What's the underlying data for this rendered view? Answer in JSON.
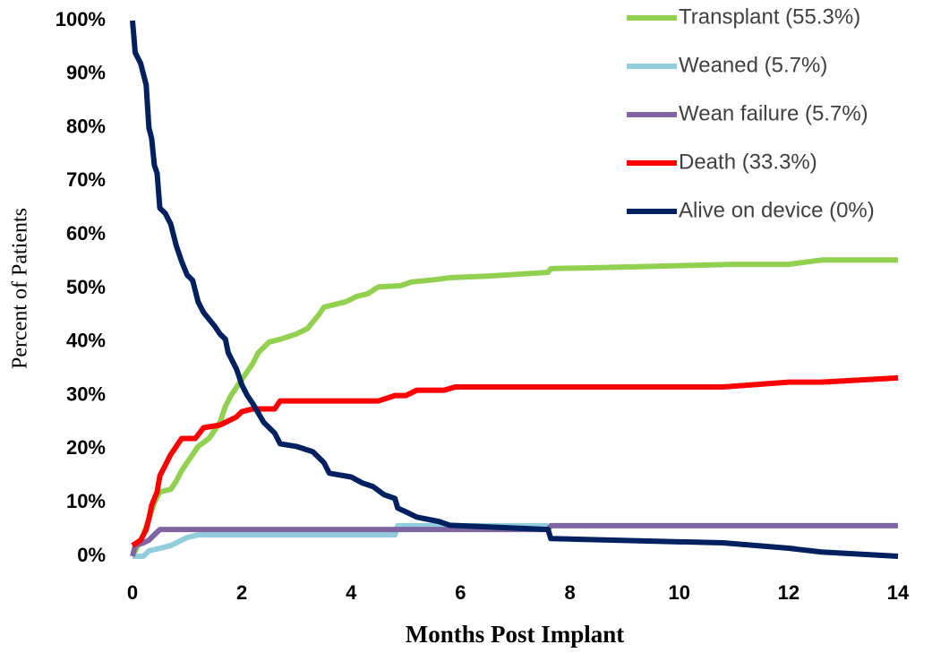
{
  "chart_data": {
    "type": "line",
    "x_label": "Months Post Implant",
    "y_label": "Percent of Patients",
    "xlim": [
      0,
      14
    ],
    "xticks": [
      0,
      2,
      4,
      6,
      8,
      10,
      12,
      14
    ],
    "ylim": [
      0,
      100
    ],
    "yticks": [
      {
        "value": 0,
        "label": "0%"
      },
      {
        "value": 10,
        "label": "10%"
      },
      {
        "value": 20,
        "label": "20%"
      },
      {
        "value": 30,
        "label": "30%"
      },
      {
        "value": 40,
        "label": "40%"
      },
      {
        "value": 50,
        "label": "50%"
      },
      {
        "value": 60,
        "label": "60%"
      },
      {
        "value": 70,
        "label": "70%"
      },
      {
        "value": 80,
        "label": "80%"
      },
      {
        "value": 90,
        "label": "90%"
      },
      {
        "value": 100,
        "label": "100%"
      }
    ],
    "grid": false,
    "legend": "top-right",
    "series": [
      {
        "name": "Transplant (55.3%)",
        "color": "#92d050",
        "x": [
          0,
          0.1,
          0.2,
          0.3,
          0.4,
          0.5,
          0.7,
          0.8,
          0.9,
          1.0,
          1.1,
          1.2,
          1.4,
          1.6,
          1.7,
          1.8,
          2.0,
          2.2,
          2.3,
          2.5,
          2.7,
          3.0,
          3.2,
          3.4,
          3.5,
          3.9,
          4.1,
          4.3,
          4.5,
          4.9,
          5.1,
          5.5,
          5.8,
          6.5,
          7.6,
          7.65,
          9,
          11,
          12,
          12.6,
          14
        ],
        "values": [
          0,
          2,
          4,
          7,
          10,
          12,
          12.5,
          14,
          16,
          17.5,
          19,
          20.5,
          22,
          25,
          28,
          30,
          33,
          36,
          38,
          40,
          40.5,
          41.5,
          42.5,
          45,
          46.5,
          47.5,
          48.5,
          49,
          50.3,
          50.5,
          51.2,
          51.6,
          52,
          52.3,
          53,
          53.7,
          54,
          54.5,
          54.5,
          55.3,
          55.3
        ]
      },
      {
        "name": "Weaned (5.7%)",
        "color": "#92cddc",
        "x": [
          0,
          0.2,
          0.3,
          0.5,
          0.7,
          0.9,
          1.0,
          1.2,
          4.8,
          4.85,
          7.6
        ],
        "values": [
          0,
          0,
          1,
          1.5,
          2,
          3,
          3.5,
          4,
          4,
          5.7,
          5.7
        ]
      },
      {
        "name": "Wean failure (5.7%)",
        "color": "#8064a2",
        "x": [
          0,
          0.05,
          0.2,
          0.3,
          0.4,
          0.5,
          7.6,
          7.65,
          14
        ],
        "values": [
          0,
          2,
          2.5,
          3,
          4,
          5,
          5,
          5.7,
          5.7
        ]
      },
      {
        "name": "Death (33.3%)",
        "color": "#ff0000",
        "x": [
          0,
          0.15,
          0.25,
          0.3,
          0.35,
          0.45,
          0.5,
          0.6,
          0.7,
          0.8,
          0.9,
          1.15,
          1.3,
          1.6,
          1.7,
          1.9,
          2.0,
          2.2,
          2.6,
          2.7,
          4.5,
          4.8,
          5.0,
          5.2,
          5.7,
          5.9,
          10.8,
          12,
          12.6,
          14
        ],
        "values": [
          2,
          3,
          5,
          7,
          9.5,
          12,
          15,
          17,
          19,
          20.5,
          22,
          22,
          24,
          24.5,
          25,
          26,
          27,
          27.5,
          27.5,
          29,
          29,
          30,
          30,
          31,
          31,
          31.6,
          31.6,
          32.5,
          32.5,
          33.3
        ]
      },
      {
        "name": "Alive on device (0%)",
        "color": "#002060",
        "x": [
          0,
          0.05,
          0.15,
          0.2,
          0.25,
          0.3,
          0.35,
          0.4,
          0.45,
          0.5,
          0.6,
          0.7,
          0.75,
          0.8,
          0.9,
          1.0,
          1.1,
          1.2,
          1.3,
          1.5,
          1.6,
          1.7,
          1.75,
          1.9,
          2.0,
          2.1,
          2.2,
          2.4,
          2.6,
          2.7,
          3.0,
          3.3,
          3.5,
          3.6,
          4.0,
          4.2,
          4.4,
          4.6,
          4.8,
          4.85,
          5.0,
          5.2,
          5.6,
          5.8,
          7.6,
          7.65,
          10.8,
          12,
          12.6,
          14
        ],
        "values": [
          100,
          94,
          92,
          90,
          88,
          80,
          78,
          73,
          71.5,
          65,
          64,
          62,
          60,
          58,
          55,
          52.5,
          51.5,
          47.5,
          45.5,
          43,
          41.5,
          40.5,
          38,
          35,
          32,
          30,
          28.5,
          25,
          23,
          21,
          20.5,
          19.5,
          17.5,
          15.5,
          14.8,
          13.7,
          13,
          11.5,
          10.8,
          9,
          8.3,
          7.3,
          6.5,
          5.8,
          5,
          3.3,
          2.5,
          1.5,
          0.8,
          0
        ]
      }
    ]
  }
}
